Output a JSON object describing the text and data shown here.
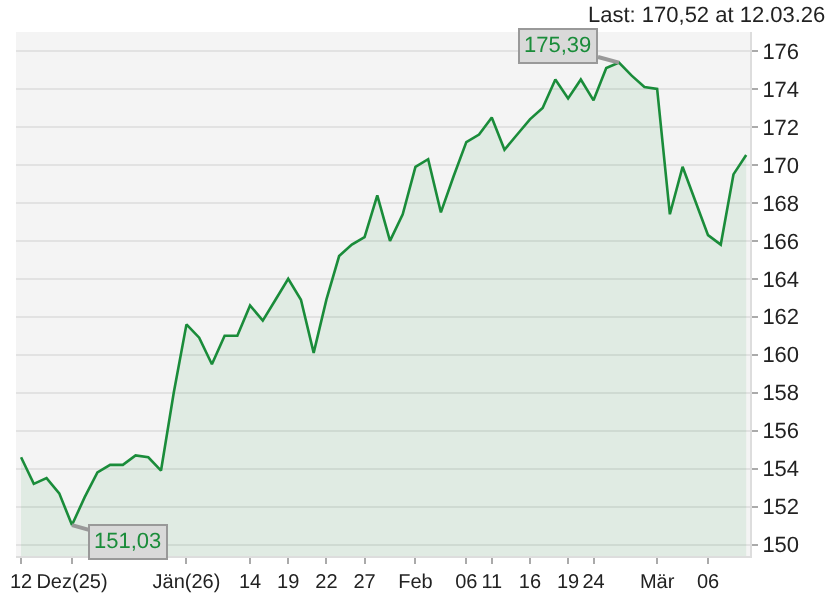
{
  "chart_data": {
    "type": "area",
    "categories": [
      "12",
      null,
      null,
      null,
      "Dez(25)",
      null,
      null,
      null,
      null,
      null,
      null,
      null,
      null,
      "Jän(26)",
      null,
      null,
      null,
      null,
      "14",
      null,
      null,
      "19",
      null,
      null,
      "22",
      null,
      null,
      "27",
      null,
      null,
      null,
      "Feb",
      null,
      null,
      null,
      "06",
      null,
      "11",
      null,
      null,
      "16",
      null,
      null,
      "19",
      null,
      "24",
      null,
      null,
      null,
      null,
      "Mär",
      null,
      null,
      null,
      "06",
      null,
      null,
      null
    ],
    "series": [
      {
        "color": "#1a8c3a",
        "values": [
          154.6,
          153.2,
          153.5,
          152.7,
          151.03,
          152.5,
          153.8,
          154.2,
          154.2,
          154.7,
          154.6,
          153.9,
          158,
          161.6,
          160.9,
          159.5,
          161,
          161,
          162.6,
          161.8,
          162.9,
          164,
          162.9,
          160.1,
          162.9,
          165.2,
          165.8,
          166.2,
          168.4,
          166,
          167.4,
          169.9,
          170.3,
          167.5,
          169.4,
          171.2,
          171.6,
          172.5,
          170.8,
          171.6,
          172.4,
          173,
          174.5,
          173.5,
          174.5,
          173.4,
          175.1,
          175.39,
          174.7,
          174.1,
          174,
          167.4,
          169.9,
          168.1,
          166.3,
          165.8,
          169.5,
          170.52
        ]
      }
    ],
    "ylim": [
      149.4,
      177
    ],
    "yticks": [
      150,
      152,
      154,
      156,
      158,
      160,
      162,
      164,
      166,
      168,
      170,
      172,
      174,
      176
    ],
    "grid": "y",
    "annotations": [
      "Last: 170,52 at 12.03.26",
      "175,39",
      "151,03"
    ]
  }
}
